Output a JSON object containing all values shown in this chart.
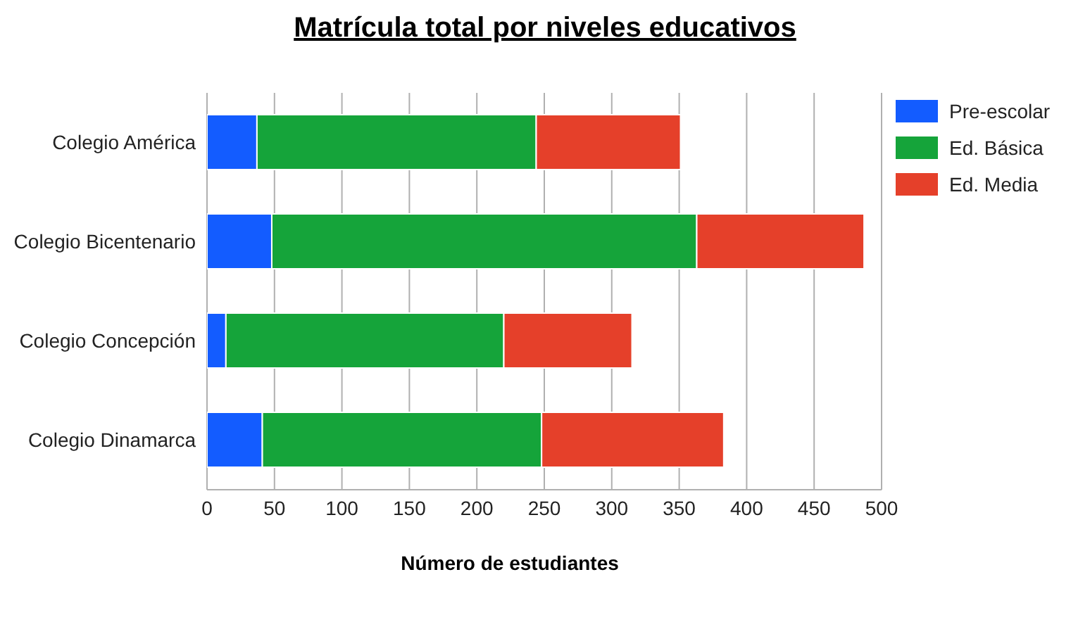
{
  "chart_data": {
    "type": "bar",
    "orientation": "horizontal",
    "stacked": true,
    "title": "Matrícula total por niveles educativos",
    "xlabel": "Número de estudiantes",
    "categories": [
      "Colegio América",
      "Colegio Bicentenario",
      "Colegio Concepción",
      "Colegio Dinamarca"
    ],
    "series": [
      {
        "name": "Pre-escolar",
        "color": "#135cff",
        "values": [
          37,
          48,
          14,
          41
        ]
      },
      {
        "name": "Ed. Básica",
        "color": "#15a43a",
        "values": [
          207,
          315,
          206,
          207
        ]
      },
      {
        "name": "Ed. Media",
        "color": "#e5402a",
        "values": [
          107,
          124,
          95,
          135
        ]
      }
    ],
    "xlim": [
      0,
      500
    ],
    "xticks": [
      0,
      50,
      100,
      150,
      200,
      250,
      300,
      350,
      400,
      450,
      500
    ],
    "grid": "x",
    "legend": "right"
  }
}
